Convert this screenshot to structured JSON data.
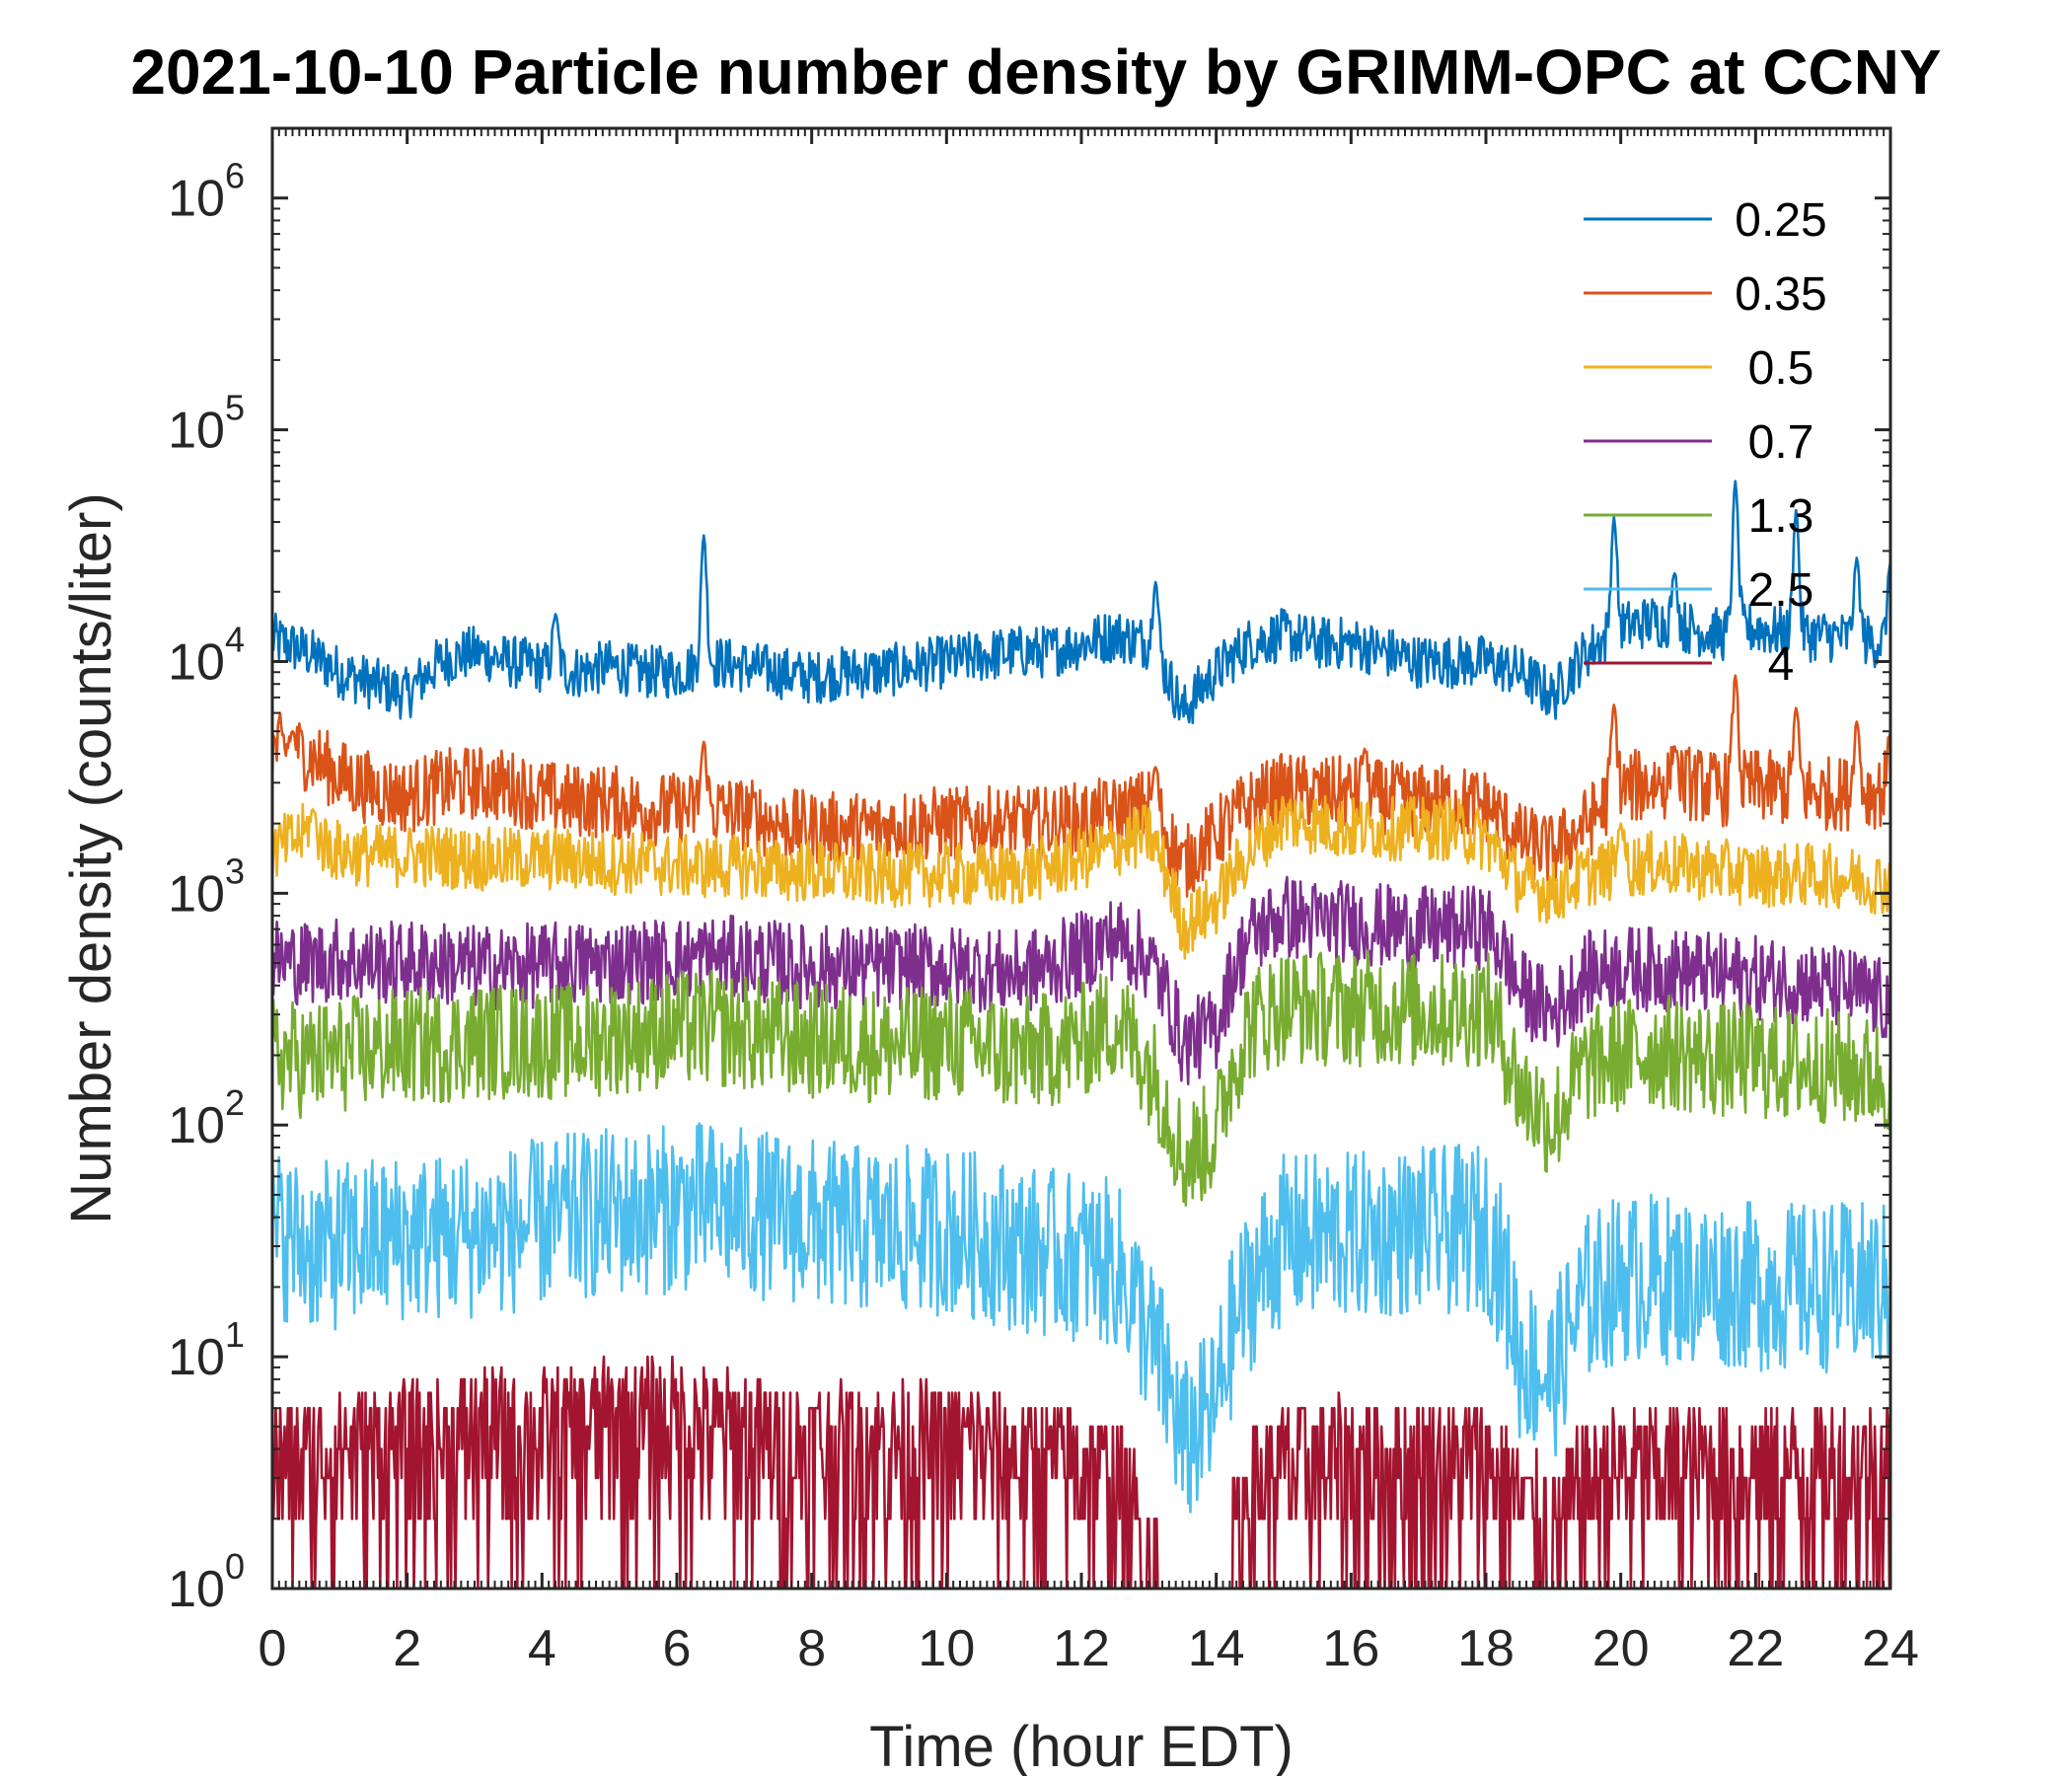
{
  "chart_data": {
    "type": "line",
    "title": "2021-10-10 Particle number density by GRIMM-OPC at CCNY",
    "xlabel": "Time (hour EDT)",
    "ylabel": "Number density (counts/liter)",
    "xlim": [
      0,
      24
    ],
    "ylim": [
      1,
      2000000
    ],
    "yscale": "log",
    "grid": false,
    "legend_position": "top-right",
    "x_ticks": [
      0,
      2,
      4,
      6,
      8,
      10,
      12,
      14,
      16,
      18,
      20,
      22,
      24
    ],
    "x_tick_labels": [
      "0",
      "2",
      "4",
      "6",
      "8",
      "10",
      "12",
      "14",
      "16",
      "18",
      "20",
      "22",
      "24"
    ],
    "y_ticks": [
      1,
      10,
      100,
      1000,
      10000,
      100000,
      1000000
    ],
    "y_tick_labels": [
      {
        "base": "10",
        "exp": "0"
      },
      {
        "base": "10",
        "exp": "1"
      },
      {
        "base": "10",
        "exp": "2"
      },
      {
        "base": "10",
        "exp": "3"
      },
      {
        "base": "10",
        "exp": "4"
      },
      {
        "base": "10",
        "exp": "5"
      },
      {
        "base": "10",
        "exp": "6"
      }
    ],
    "x": [
      0,
      0.5,
      1,
      1.5,
      2,
      2.5,
      3,
      3.5,
      4,
      4.5,
      5,
      5.5,
      6,
      6.5,
      7,
      7.5,
      8,
      8.5,
      9,
      9.5,
      10,
      10.5,
      11,
      11.5,
      12,
      12.5,
      13,
      13.5,
      14,
      14.5,
      15,
      15.5,
      16,
      16.5,
      17,
      17.5,
      18,
      18.5,
      19,
      19.5,
      20,
      20.5,
      21,
      21.5,
      22,
      22.5,
      23,
      23.5,
      24
    ],
    "series": [
      {
        "name": "0.25",
        "color": "#0072BD",
        "values": [
          12500,
          11000,
          9000,
          8000,
          7200,
          10000,
          11000,
          10000,
          9500,
          9000,
          9500,
          9000,
          9000,
          10000,
          9500,
          9000,
          8500,
          9000,
          9000,
          9500,
          10000,
          10500,
          11000,
          11000,
          12000,
          13000,
          12000,
          6000,
          9000,
          12000,
          13000,
          12000,
          12000,
          11000,
          10000,
          10000,
          10000,
          9000,
          7000,
          11000,
          14000,
          15000,
          14000,
          13000,
          14000,
          13000,
          13000,
          12500,
          12000
        ],
        "spikes": [
          {
            "x": 4.2,
            "y": 16000
          },
          {
            "x": 6.4,
            "y": 35000
          },
          {
            "x": 13.1,
            "y": 22000
          },
          {
            "x": 19.9,
            "y": 42000
          },
          {
            "x": 20.8,
            "y": 24000
          },
          {
            "x": 21.7,
            "y": 60000
          },
          {
            "x": 22.6,
            "y": 45000
          },
          {
            "x": 23.5,
            "y": 28000
          },
          {
            "x": 24,
            "y": 27000
          }
        ]
      },
      {
        "name": "0.35",
        "color": "#D95319",
        "values": [
          4200,
          4000,
          3200,
          2800,
          2600,
          2900,
          3000,
          2900,
          2600,
          2500,
          2500,
          2300,
          2300,
          2300,
          2200,
          2000,
          1900,
          1900,
          1900,
          2000,
          2000,
          2000,
          2000,
          2000,
          2100,
          2200,
          2400,
          1300,
          1800,
          2400,
          2800,
          2700,
          2700,
          2600,
          2500,
          2500,
          2400,
          1700,
          1500,
          2000,
          2800,
          3000,
          3000,
          2800,
          2900,
          2800,
          2700,
          2700,
          2800
        ],
        "spikes": [
          {
            "x": 0.3,
            "y": 5000
          },
          {
            "x": 6.4,
            "y": 4500
          },
          {
            "x": 13.1,
            "y": 3500
          },
          {
            "x": 16.2,
            "y": 4200
          },
          {
            "x": 19.9,
            "y": 6500
          },
          {
            "x": 20.8,
            "y": 4300
          },
          {
            "x": 21.7,
            "y": 8700
          },
          {
            "x": 22.6,
            "y": 6300
          },
          {
            "x": 23.5,
            "y": 5500
          },
          {
            "x": 24,
            "y": 5000
          }
        ]
      },
      {
        "name": "0.5",
        "color": "#EDB120",
        "values": [
          1500,
          1800,
          1500,
          1450,
          1450,
          1450,
          1400,
          1400,
          1400,
          1400,
          1350,
          1350,
          1300,
          1300,
          1300,
          1250,
          1250,
          1200,
          1200,
          1200,
          1200,
          1200,
          1200,
          1300,
          1400,
          1600,
          1800,
          700,
          900,
          1500,
          2100,
          2000,
          1900,
          1900,
          1900,
          1900,
          1700,
          1100,
          1000,
          1200,
          1300,
          1350,
          1300,
          1250,
          1200,
          1200,
          1200,
          1150,
          1100
        ],
        "spikes": [
          {
            "x": 0.6,
            "y": 2300
          },
          {
            "x": 20.0,
            "y": 2000
          }
        ]
      },
      {
        "name": "0.7",
        "color": "#7E2F8E",
        "values": [
          520,
          500,
          520,
          500,
          500,
          500,
          480,
          480,
          490,
          500,
          500,
          510,
          520,
          530,
          520,
          500,
          480,
          480,
          480,
          480,
          480,
          470,
          450,
          480,
          550,
          650,
          520,
          220,
          260,
          650,
          800,
          750,
          750,
          720,
          700,
          700,
          720,
          380,
          300,
          450,
          480,
          470,
          460,
          440,
          430,
          420,
          400,
          380,
          330
        ],
        "spikes": []
      },
      {
        "name": "1.3",
        "color": "#77AC30",
        "values": [
          200,
          190,
          200,
          210,
          220,
          220,
          230,
          230,
          230,
          230,
          240,
          250,
          260,
          260,
          250,
          240,
          230,
          230,
          220,
          220,
          230,
          220,
          200,
          210,
          230,
          280,
          180,
          70,
          90,
          270,
          330,
          320,
          320,
          320,
          310,
          310,
          320,
          140,
          100,
          180,
          200,
          210,
          200,
          190,
          190,
          180,
          180,
          170,
          160
        ],
        "spikes": []
      },
      {
        "name": "2.5",
        "color": "#4DBEEE",
        "values": [
          35,
          30,
          30,
          32,
          33,
          33,
          34,
          35,
          38,
          40,
          42,
          42,
          44,
          45,
          42,
          40,
          38,
          36,
          35,
          35,
          35,
          33,
          30,
          28,
          27,
          25,
          12,
          4,
          6,
          20,
          32,
          33,
          33,
          34,
          35,
          35,
          36,
          10,
          8,
          18,
          22,
          22,
          21,
          21,
          20,
          20,
          20,
          20,
          20
        ],
        "spikes": []
      },
      {
        "name": "4",
        "color": "#A2142F",
        "values": [
          3,
          3,
          3.5,
          3.5,
          3.5,
          3.5,
          4,
          4,
          4,
          4,
          4.5,
          4.5,
          4.5,
          4,
          4,
          3.5,
          3.5,
          3.5,
          3.5,
          3.5,
          3.5,
          3.5,
          3,
          3,
          3,
          2.5,
          1.2,
          0,
          0,
          2.5,
          2.8,
          3,
          3,
          3,
          3,
          3,
          3,
          2,
          1.5,
          2.5,
          2.8,
          2.8,
          2.8,
          2.8,
          2.8,
          2.8,
          2.8,
          2.8,
          2.8
        ],
        "spikes": []
      }
    ]
  }
}
